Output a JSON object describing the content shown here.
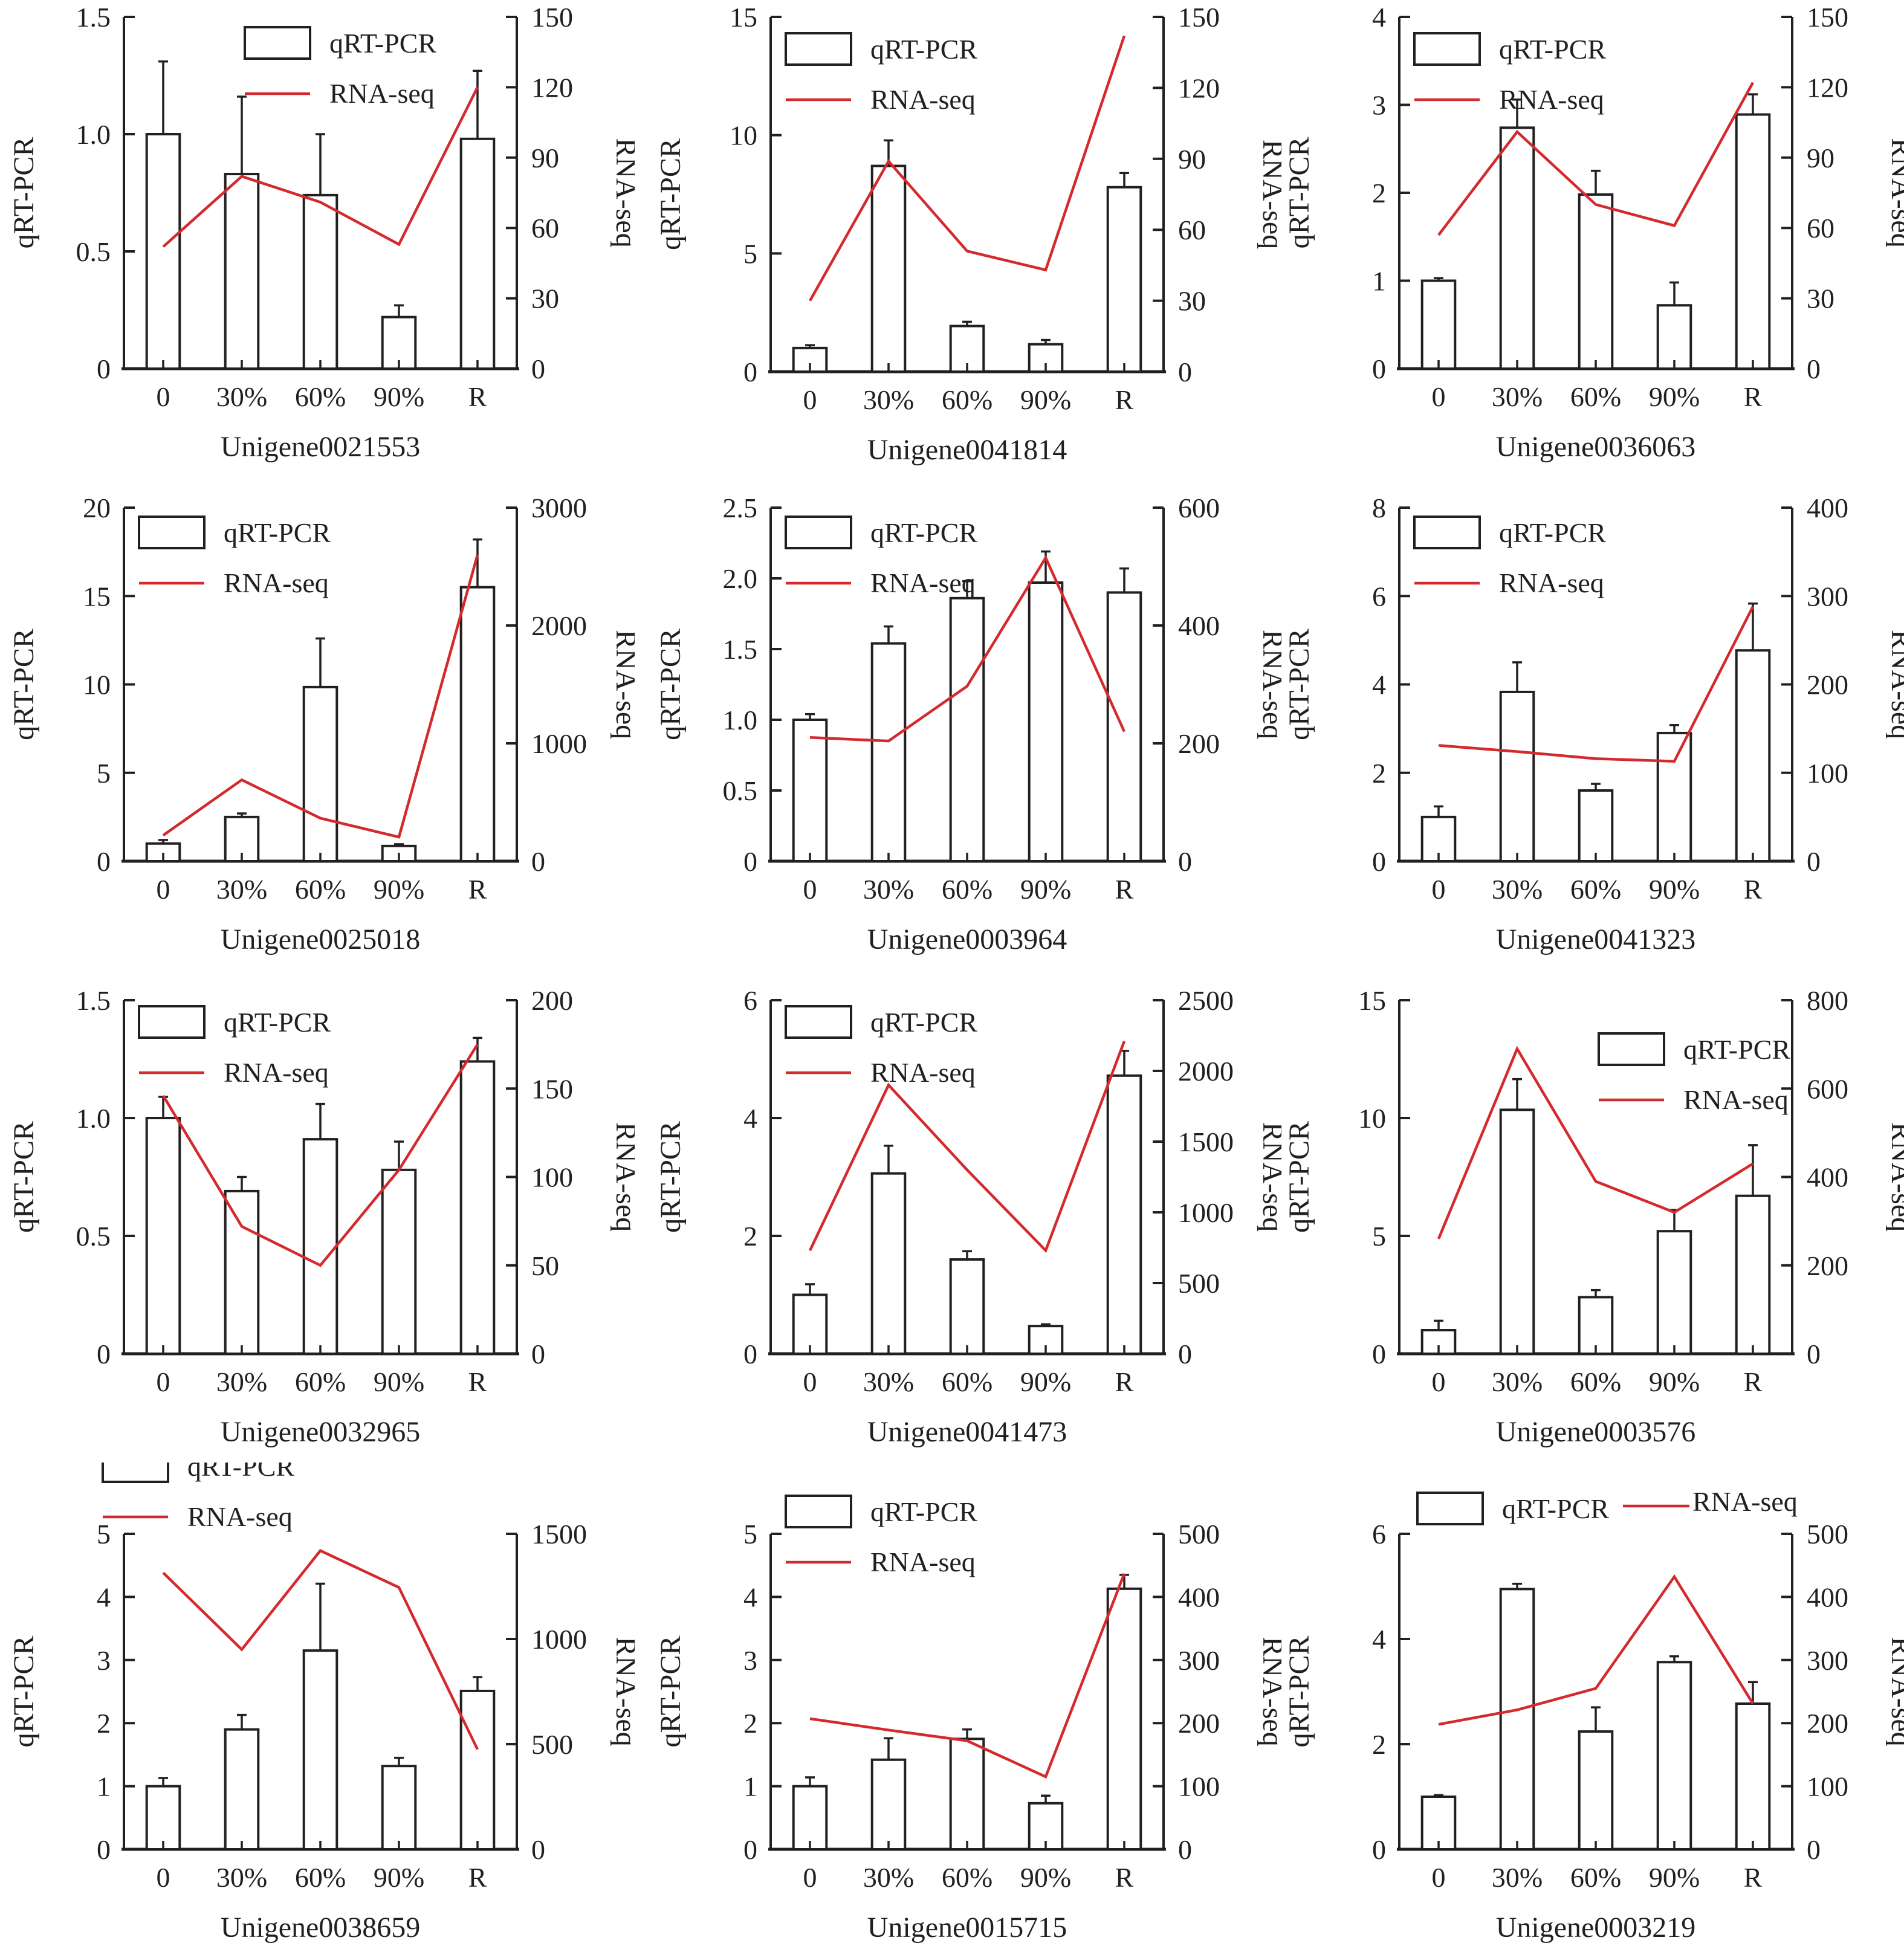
{
  "figure": {
    "categories": [
      "0",
      "30%",
      "60%",
      "90%",
      "R"
    ],
    "left_axis_label": "qRT-PCR",
    "right_axis_label": "RNA-seq",
    "legend": {
      "bar_label": "qRT-PCR",
      "line_label": "RNA-seq"
    },
    "colors": {
      "line": "#d42a2e",
      "ink": "#231f20",
      "bar_fill": "#ffffff"
    }
  },
  "chart_data": [
    {
      "type": "bar+line",
      "title": "Unigene0021553",
      "categories": [
        "0",
        "30%",
        "60%",
        "90%",
        "R"
      ],
      "left_axis": {
        "label": "qRT-PCR",
        "range": [
          0,
          1.5
        ],
        "ticks": [
          "0",
          "0.5",
          "1.0",
          "1.5"
        ],
        "tick_values": [
          0,
          0.5,
          1.0,
          1.5
        ]
      },
      "right_axis": {
        "label": "RNA-seq",
        "range": [
          0,
          150
        ],
        "ticks": [
          "0",
          "30",
          "60",
          "90",
          "120",
          "150"
        ],
        "tick_values": [
          0,
          30,
          60,
          90,
          120,
          150
        ]
      },
      "series": [
        {
          "name": "qRT-PCR",
          "type": "bar",
          "axis": "left",
          "values": [
            1.0,
            0.83,
            0.74,
            0.22,
            0.98
          ],
          "error_upper": [
            1.31,
            1.16,
            1.0,
            0.27,
            1.27
          ]
        },
        {
          "name": "RNA-seq",
          "type": "line",
          "axis": "right",
          "values": [
            52,
            82,
            71,
            53,
            120
          ]
        }
      ],
      "legend": "top-center"
    },
    {
      "type": "bar+line",
      "title": "Unigene0041814",
      "categories": [
        "0",
        "30%",
        "60%",
        "90%",
        "R"
      ],
      "left_axis": {
        "label": "qRT-PCR",
        "range": [
          0,
          15
        ],
        "ticks": [
          "0",
          "5",
          "10",
          "15"
        ],
        "tick_values": [
          0,
          5,
          10,
          15
        ]
      },
      "right_axis": {
        "label": "RNA-seq",
        "range": [
          0,
          150
        ],
        "ticks": [
          "0",
          "30",
          "60",
          "90",
          "120",
          "150"
        ],
        "tick_values": [
          0,
          30,
          60,
          90,
          120,
          150
        ]
      },
      "series": [
        {
          "name": "qRT-PCR",
          "type": "bar",
          "axis": "left",
          "values": [
            1.0,
            8.7,
            1.93,
            1.16,
            7.8
          ],
          "error_upper": [
            1.12,
            9.78,
            2.11,
            1.34,
            8.4
          ]
        },
        {
          "name": "RNA-seq",
          "type": "line",
          "axis": "right",
          "values": [
            30,
            89,
            51,
            43,
            142
          ]
        }
      ],
      "legend": "top-left"
    },
    {
      "type": "bar+line",
      "title": "Unigene0036063",
      "categories": [
        "0",
        "30%",
        "60%",
        "90%",
        "R"
      ],
      "left_axis": {
        "label": "qRT-PCR",
        "range": [
          0,
          4
        ],
        "ticks": [
          "0",
          "1",
          "2",
          "3",
          "4"
        ],
        "tick_values": [
          0,
          1,
          2,
          3,
          4
        ]
      },
      "right_axis": {
        "label": "RNA-seq",
        "range": [
          0,
          150
        ],
        "ticks": [
          "0",
          "30",
          "60",
          "90",
          "120",
          "150"
        ],
        "tick_values": [
          0,
          30,
          60,
          90,
          120,
          150
        ]
      },
      "series": [
        {
          "name": "qRT-PCR",
          "type": "bar",
          "axis": "left",
          "values": [
            1.0,
            2.74,
            1.98,
            0.72,
            2.89
          ],
          "error_upper": [
            1.03,
            3.06,
            2.25,
            0.98,
            3.12
          ]
        },
        {
          "name": "RNA-seq",
          "type": "line",
          "axis": "right",
          "values": [
            57,
            101,
            70,
            61,
            122
          ]
        }
      ],
      "legend": "top-left"
    },
    {
      "type": "bar+line",
      "title": "Unigene0025018",
      "categories": [
        "0",
        "30%",
        "60%",
        "90%",
        "R"
      ],
      "left_axis": {
        "label": "qRT-PCR",
        "range": [
          0,
          20
        ],
        "ticks": [
          "0",
          "5",
          "10",
          "15",
          "20"
        ],
        "tick_values": [
          0,
          5,
          10,
          15,
          20
        ]
      },
      "right_axis": {
        "label": "RNA-seq",
        "range": [
          0,
          3000
        ],
        "ticks": [
          "0",
          "1000",
          "2000",
          "3000"
        ],
        "tick_values": [
          0,
          1000,
          2000,
          3000
        ]
      },
      "series": [
        {
          "name": "qRT-PCR",
          "type": "bar",
          "axis": "left",
          "values": [
            1.0,
            2.5,
            9.85,
            0.86,
            15.5
          ],
          "error_upper": [
            1.2,
            2.7,
            12.6,
            0.96,
            18.2
          ]
        },
        {
          "name": "RNA-seq",
          "type": "line",
          "axis": "right",
          "values": [
            220,
            690,
            365,
            205,
            2600
          ]
        }
      ],
      "legend": "top-left"
    },
    {
      "type": "bar+line",
      "title": "Unigene0003964",
      "categories": [
        "0",
        "30%",
        "60%",
        "90%",
        "R"
      ],
      "left_axis": {
        "label": "qRT-PCR",
        "range": [
          0,
          2.5
        ],
        "ticks": [
          "0",
          "0.5",
          "1.0",
          "1.5",
          "2.0",
          "2.5"
        ],
        "tick_values": [
          0,
          0.5,
          1.0,
          1.5,
          2.0,
          2.5
        ]
      },
      "right_axis": {
        "label": "RNA-seq",
        "range": [
          0,
          600
        ],
        "ticks": [
          "0",
          "200",
          "400",
          "600"
        ],
        "tick_values": [
          0,
          200,
          400,
          600
        ]
      },
      "series": [
        {
          "name": "qRT-PCR",
          "type": "bar",
          "axis": "left",
          "values": [
            1.0,
            1.54,
            1.86,
            1.97,
            1.9
          ],
          "error_upper": [
            1.04,
            1.66,
            1.98,
            2.19,
            2.07
          ]
        },
        {
          "name": "RNA-seq",
          "type": "line",
          "axis": "right",
          "values": [
            210,
            204,
            297,
            515,
            220
          ]
        }
      ],
      "legend": "top-left"
    },
    {
      "type": "bar+line",
      "title": "Unigene0041323",
      "categories": [
        "0",
        "30%",
        "60%",
        "90%",
        "R"
      ],
      "left_axis": {
        "label": "qRT-PCR",
        "range": [
          0,
          8
        ],
        "ticks": [
          "0",
          "2",
          "4",
          "6",
          "8"
        ],
        "tick_values": [
          0,
          2,
          4,
          6,
          8
        ]
      },
      "right_axis": {
        "label": "RNA-seq",
        "range": [
          0,
          400
        ],
        "ticks": [
          "0",
          "100",
          "200",
          "300",
          "400"
        ],
        "tick_values": [
          0,
          100,
          200,
          300,
          400
        ]
      },
      "series": [
        {
          "name": "qRT-PCR",
          "type": "bar",
          "axis": "left",
          "values": [
            1.0,
            3.83,
            1.6,
            2.9,
            4.77
          ],
          "error_upper": [
            1.24,
            4.5,
            1.75,
            3.08,
            5.83
          ]
        },
        {
          "name": "RNA-seq",
          "type": "line",
          "axis": "right",
          "values": [
            131,
            124,
            116,
            113,
            288
          ]
        }
      ],
      "legend": "top-left"
    },
    {
      "type": "bar+line",
      "title": "Unigene0032965",
      "categories": [
        "0",
        "30%",
        "60%",
        "90%",
        "R"
      ],
      "left_axis": {
        "label": "qRT-PCR",
        "range": [
          0,
          1.5
        ],
        "ticks": [
          "0",
          "0.5",
          "1.0",
          "1.5"
        ],
        "tick_values": [
          0,
          0.5,
          1.0,
          1.5
        ]
      },
      "right_axis": {
        "label": "RNA-seq",
        "range": [
          0,
          200
        ],
        "ticks": [
          "0",
          "50",
          "100",
          "150",
          "200"
        ],
        "tick_values": [
          0,
          50,
          100,
          150,
          200
        ]
      },
      "series": [
        {
          "name": "qRT-PCR",
          "type": "bar",
          "axis": "left",
          "values": [
            1.0,
            0.69,
            0.91,
            0.78,
            1.24
          ],
          "error_upper": [
            1.09,
            0.75,
            1.06,
            0.9,
            1.34
          ]
        },
        {
          "name": "RNA-seq",
          "type": "line",
          "axis": "right",
          "values": [
            146,
            72,
            50,
            104,
            175
          ]
        }
      ],
      "legend": "top-left"
    },
    {
      "type": "bar+line",
      "title": "Unigene0041473",
      "categories": [
        "0",
        "30%",
        "60%",
        "90%",
        "R"
      ],
      "left_axis": {
        "label": "qRT-PCR",
        "range": [
          0,
          6
        ],
        "ticks": [
          "0",
          "2",
          "4",
          "6"
        ],
        "tick_values": [
          0,
          2,
          4,
          6
        ]
      },
      "right_axis": {
        "label": "RNA-seq",
        "range": [
          0,
          2500
        ],
        "ticks": [
          "0",
          "500",
          "1000",
          "1500",
          "2000",
          "2500"
        ],
        "tick_values": [
          0,
          500,
          1000,
          1500,
          2000,
          2500
        ]
      },
      "series": [
        {
          "name": "qRT-PCR",
          "type": "bar",
          "axis": "left",
          "values": [
            1.0,
            3.06,
            1.6,
            0.47,
            4.72
          ],
          "error_upper": [
            1.18,
            3.53,
            1.74,
            0.5,
            5.14
          ]
        },
        {
          "name": "RNA-seq",
          "type": "line",
          "axis": "right",
          "values": [
            730,
            1900,
            1300,
            730,
            2210
          ]
        }
      ],
      "legend": "top-left"
    },
    {
      "type": "bar+line",
      "title": "Unigene0003576",
      "categories": [
        "0",
        "30%",
        "60%",
        "90%",
        "R"
      ],
      "left_axis": {
        "label": "qRT-PCR",
        "range": [
          0,
          15
        ],
        "ticks": [
          "0",
          "5",
          "10",
          "15"
        ],
        "tick_values": [
          0,
          5,
          10,
          15
        ]
      },
      "right_axis": {
        "label": "RNA-seq",
        "range": [
          0,
          800
        ],
        "ticks": [
          "0",
          "200",
          "400",
          "600",
          "800"
        ],
        "tick_values": [
          0,
          200,
          400,
          600,
          800
        ]
      },
      "series": [
        {
          "name": "qRT-PCR",
          "type": "bar",
          "axis": "left",
          "values": [
            1.0,
            10.35,
            2.4,
            5.2,
            6.7
          ],
          "error_upper": [
            1.4,
            11.65,
            2.7,
            6.1,
            8.85
          ]
        },
        {
          "name": "RNA-seq",
          "type": "line",
          "axis": "right",
          "values": [
            260,
            690,
            390,
            320,
            430
          ]
        }
      ],
      "legend": "top-right"
    },
    {
      "type": "bar+line",
      "title": "Unigene0038659",
      "categories": [
        "0",
        "30%",
        "60%",
        "90%",
        "R"
      ],
      "left_axis": {
        "label": "qRT-PCR",
        "range": [
          0,
          5
        ],
        "ticks": [
          "0",
          "1",
          "2",
          "3",
          "4",
          "5"
        ],
        "tick_values": [
          0,
          1,
          2,
          3,
          4,
          5
        ]
      },
      "right_axis": {
        "label": "RNA-seq",
        "range": [
          0,
          1500
        ],
        "ticks": [
          "0",
          "500",
          "1000",
          "1500"
        ],
        "tick_values": [
          0,
          500,
          1000,
          1500
        ]
      },
      "series": [
        {
          "name": "qRT-PCR",
          "type": "bar",
          "axis": "left",
          "values": [
            1.0,
            1.9,
            3.15,
            1.32,
            2.51
          ],
          "error_upper": [
            1.13,
            2.13,
            4.21,
            1.45,
            2.73
          ]
        },
        {
          "name": "RNA-seq",
          "type": "line",
          "axis": "right",
          "values": [
            1315,
            950,
            1420,
            1245,
            475
          ]
        }
      ],
      "legend": "top-left-outside"
    },
    {
      "type": "bar+line",
      "title": "Unigene0015715",
      "categories": [
        "0",
        "30%",
        "60%",
        "90%",
        "R"
      ],
      "left_axis": {
        "label": "qRT-PCR",
        "range": [
          0,
          5
        ],
        "ticks": [
          "0",
          "1",
          "2",
          "3",
          "4",
          "5"
        ],
        "tick_values": [
          0,
          1,
          2,
          3,
          4,
          5
        ]
      },
      "right_axis": {
        "label": "RNA-seq",
        "range": [
          0,
          500
        ],
        "ticks": [
          "0",
          "100",
          "200",
          "300",
          "400",
          "500"
        ],
        "tick_values": [
          0,
          100,
          200,
          300,
          400,
          500
        ]
      },
      "series": [
        {
          "name": "qRT-PCR",
          "type": "bar",
          "axis": "left",
          "values": [
            1.0,
            1.42,
            1.75,
            0.73,
            4.13
          ],
          "error_upper": [
            1.14,
            1.76,
            1.9,
            0.85,
            4.35
          ]
        },
        {
          "name": "RNA-seq",
          "type": "line",
          "axis": "right",
          "values": [
            207,
            189,
            172,
            115,
            437
          ]
        }
      ],
      "legend": "top-left"
    },
    {
      "type": "bar+line",
      "title": "Unigene0003219",
      "categories": [
        "0",
        "30%",
        "60%",
        "90%",
        "R"
      ],
      "left_axis": {
        "label": "qRT-PCR",
        "range": [
          0,
          6
        ],
        "ticks": [
          "0",
          "2",
          "4",
          "6"
        ],
        "tick_values": [
          0,
          2,
          4,
          6
        ]
      },
      "right_axis": {
        "label": "RNA-seq",
        "range": [
          0,
          500
        ],
        "ticks": [
          "0",
          "100",
          "200",
          "300",
          "400",
          "500"
        ],
        "tick_values": [
          0,
          100,
          200,
          300,
          400,
          500
        ]
      },
      "series": [
        {
          "name": "qRT-PCR",
          "type": "bar",
          "axis": "left",
          "values": [
            1.0,
            4.95,
            2.24,
            3.56,
            2.77
          ],
          "error_upper": [
            1.03,
            5.05,
            2.7,
            3.67,
            3.18
          ]
        },
        {
          "name": "RNA-seq",
          "type": "line",
          "axis": "right",
          "values": [
            198,
            221,
            255,
            432,
            231
          ]
        }
      ],
      "legend": "top-horizontal"
    }
  ]
}
